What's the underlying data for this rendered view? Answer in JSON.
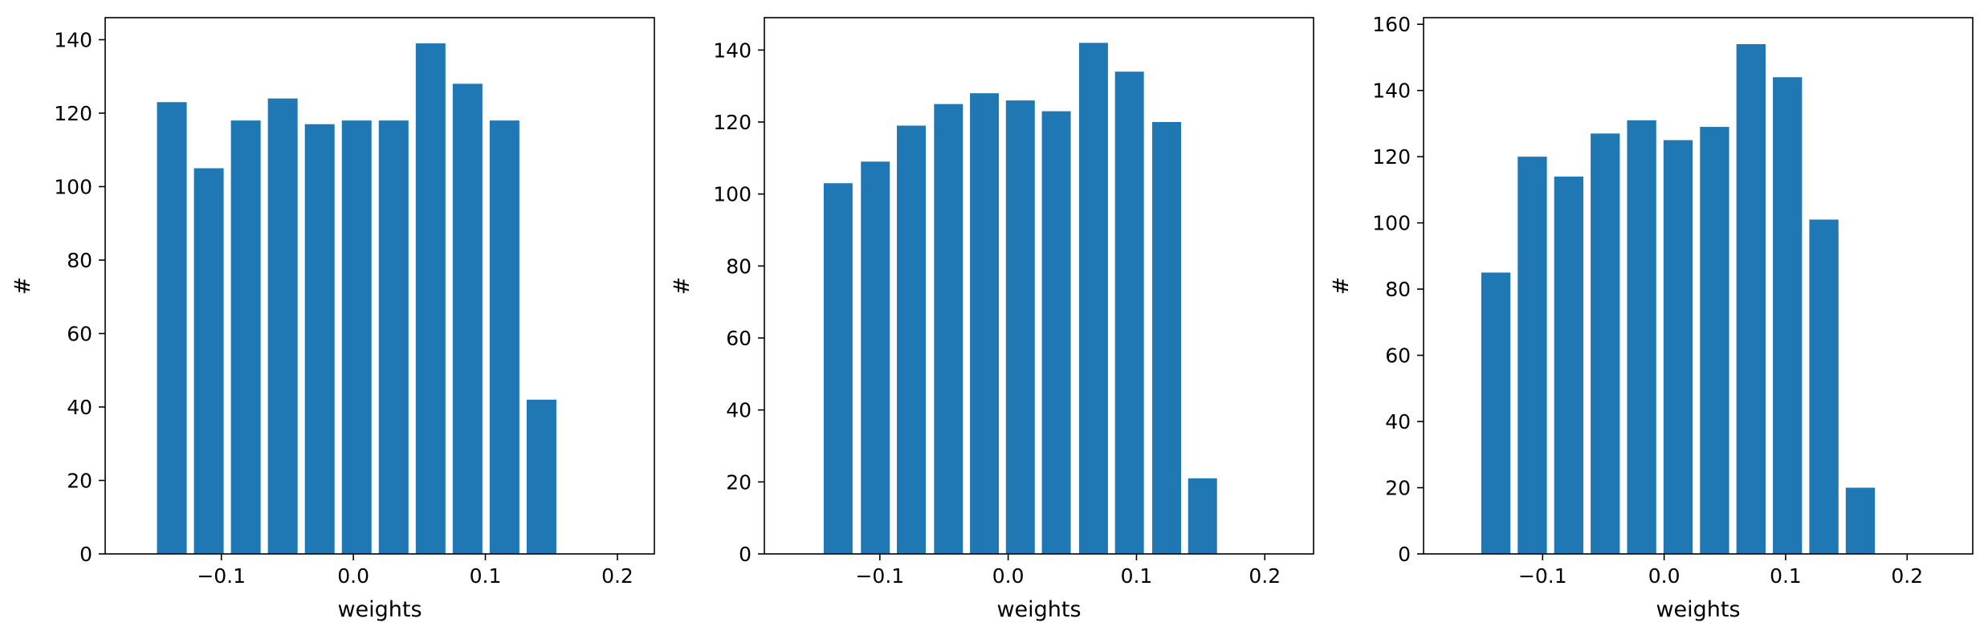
{
  "chart_data": [
    {
      "type": "bar",
      "title": "",
      "xlabel": "weights",
      "ylabel": "#",
      "color": "#1f77b4",
      "x": [
        -0.1375,
        -0.1095,
        -0.0815,
        -0.0535,
        -0.0255,
        0.0025,
        0.0305,
        0.0585,
        0.0865,
        0.1145,
        0.1425
      ],
      "values": [
        123,
        105,
        118,
        124,
        117,
        118,
        118,
        139,
        128,
        118,
        42
      ],
      "bar_width": 0.0225,
      "xlim": [
        -0.188,
        0.228
      ],
      "ylim": [
        0,
        146
      ],
      "xticks": [
        -0.1,
        0.0,
        0.1,
        0.2
      ],
      "xtick_labels": [
        "−0.1",
        "0.0",
        "0.1",
        "0.2"
      ],
      "yticks": [
        0,
        20,
        40,
        60,
        80,
        100,
        120,
        140
      ],
      "ytick_labels": [
        "0",
        "20",
        "40",
        "60",
        "80",
        "100",
        "120",
        "140"
      ]
    },
    {
      "type": "bar",
      "title": "",
      "xlabel": "weights",
      "ylabel": "#",
      "color": "#1f77b4",
      "x": [
        -0.1325,
        -0.1035,
        -0.0755,
        -0.0465,
        -0.0185,
        0.0095,
        0.0375,
        0.0665,
        0.0945,
        0.1235,
        0.1515
      ],
      "values": [
        103,
        109,
        119,
        125,
        128,
        126,
        123,
        142,
        134,
        120,
        21
      ],
      "bar_width": 0.0225,
      "xlim": [
        -0.19,
        0.238
      ],
      "ylim": [
        0,
        149
      ],
      "xticks": [
        -0.1,
        0.0,
        0.1,
        0.2
      ],
      "xtick_labels": [
        "−0.1",
        "0.0",
        "0.1",
        "0.2"
      ],
      "yticks": [
        0,
        20,
        40,
        60,
        80,
        100,
        120,
        140
      ],
      "ytick_labels": [
        "0",
        "20",
        "40",
        "60",
        "80",
        "100",
        "120",
        "140"
      ]
    },
    {
      "type": "bar",
      "title": "",
      "xlabel": "weights",
      "ylabel": "#",
      "color": "#1f77b4",
      "x": [
        -0.1385,
        -0.1085,
        -0.0785,
        -0.0485,
        -0.0185,
        0.0115,
        0.0415,
        0.0715,
        0.1015,
        0.1315,
        0.1615
      ],
      "values": [
        85,
        120,
        114,
        127,
        131,
        125,
        129,
        154,
        144,
        101,
        20
      ],
      "bar_width": 0.024,
      "xlim": [
        -0.198,
        0.254
      ],
      "ylim": [
        0,
        162
      ],
      "xticks": [
        -0.1,
        0.0,
        0.1,
        0.2
      ],
      "xtick_labels": [
        "−0.1",
        "0.0",
        "0.1",
        "0.2"
      ],
      "yticks": [
        0,
        20,
        40,
        60,
        80,
        100,
        120,
        140,
        160
      ],
      "ytick_labels": [
        "0",
        "20",
        "40",
        "60",
        "80",
        "100",
        "120",
        "140",
        "160"
      ]
    }
  ]
}
